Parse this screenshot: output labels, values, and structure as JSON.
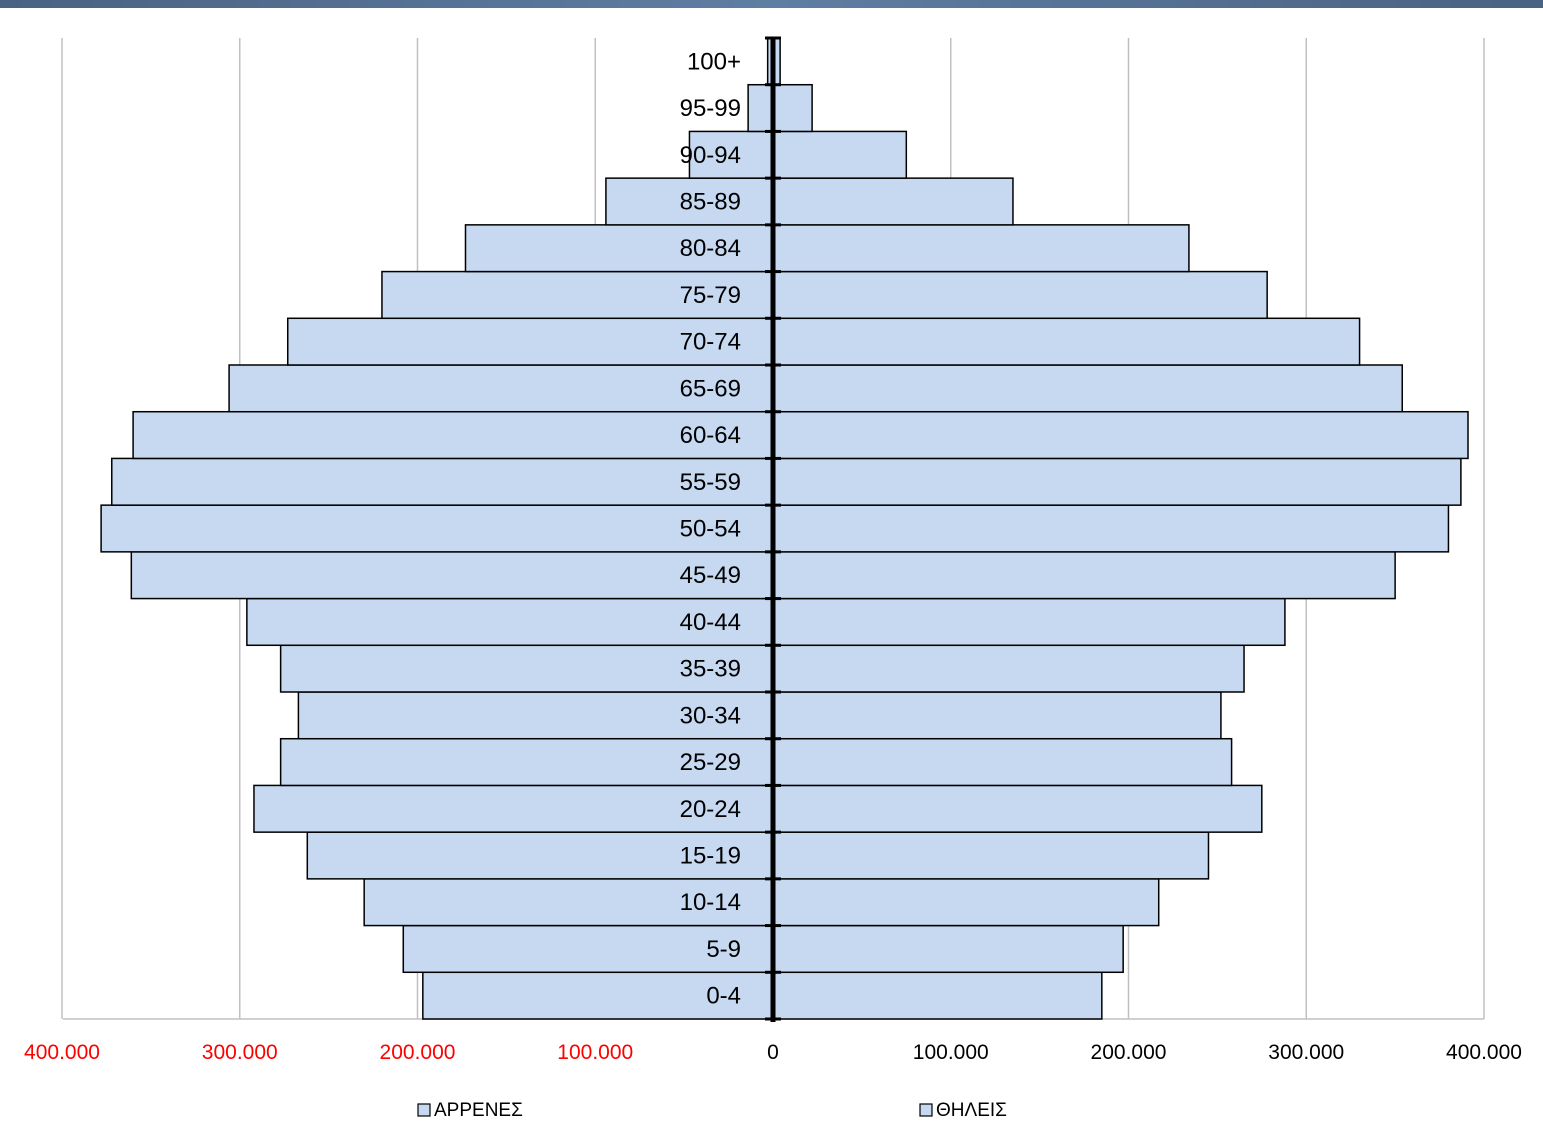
{
  "chart_data": {
    "type": "bar",
    "orientation": "horizontal",
    "layout": "population-pyramid",
    "categories": [
      "0-4",
      "5-9",
      "10-14",
      "15-19",
      "20-24",
      "25-29",
      "30-34",
      "35-39",
      "40-44",
      "45-49",
      "50-54",
      "55-59",
      "60-64",
      "65-69",
      "70-74",
      "75-79",
      "80-84",
      "85-89",
      "90-94",
      "95-99",
      "100+"
    ],
    "series": [
      {
        "name": "ΑΡΡΕΝΕΣ",
        "side": "left",
        "values": [
          197000,
          208000,
          230000,
          262000,
          292000,
          277000,
          267000,
          277000,
          296000,
          361000,
          378000,
          372000,
          360000,
          306000,
          273000,
          220000,
          173000,
          94000,
          47000,
          14000,
          3000
        ]
      },
      {
        "name": "ΘΗΛΕΙΣ",
        "side": "right",
        "values": [
          185000,
          197000,
          217000,
          245000,
          275000,
          258000,
          252000,
          265000,
          288000,
          350000,
          380000,
          387000,
          391000,
          354000,
          330000,
          278000,
          234000,
          135000,
          75000,
          22000,
          4000
        ]
      }
    ],
    "xlim": [
      -400000,
      400000
    ],
    "xticks": [
      {
        "value": -400000,
        "label": "400.000"
      },
      {
        "value": -300000,
        "label": "300.000"
      },
      {
        "value": -200000,
        "label": "200.000"
      },
      {
        "value": -100000,
        "label": "100.000"
      },
      {
        "value": 0,
        "label": "0"
      },
      {
        "value": 100000,
        "label": "100.000"
      },
      {
        "value": 200000,
        "label": "200.000"
      },
      {
        "value": 300000,
        "label": "300.000"
      },
      {
        "value": 400000,
        "label": "400.000"
      }
    ],
    "grid": "vertical",
    "legend_position": "bottom",
    "colors": {
      "bar_fill": "#c6d9f1",
      "bar_stroke": "#000000",
      "negative_tick": "#ff0000",
      "positive_tick": "#000000",
      "gridline": "#c0c0c0",
      "header_band": "#4f6a8f"
    }
  }
}
